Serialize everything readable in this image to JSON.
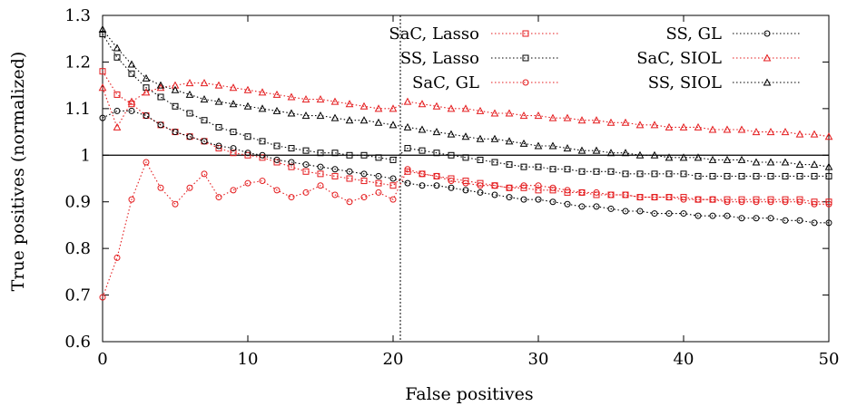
{
  "chart_data": {
    "type": "line",
    "title": "",
    "xlabel": "False positives",
    "ylabel": "True positives (normalized)",
    "xlim": [
      0,
      50
    ],
    "ylim": [
      0.6,
      1.3
    ],
    "xticks": [
      0,
      10,
      20,
      30,
      40,
      50
    ],
    "yticks": [
      0.6,
      0.7,
      0.8,
      0.9,
      1.0,
      1.1,
      1.2,
      1.3
    ],
    "ytick_labels": [
      "0.6",
      "0.7",
      "0.8",
      "0.9",
      "1",
      "1.1",
      "1.2",
      "1.3"
    ],
    "reference_hline": 1.0,
    "reference_vline": 20.5,
    "grid": false,
    "legend_position": "top-right",
    "series": [
      {
        "name": "SaC, Lasso",
        "color": "#e41a1c",
        "marker": "square",
        "x": [
          0,
          1,
          2,
          3,
          4,
          5,
          6,
          7,
          8,
          9,
          10,
          11,
          12,
          13,
          14,
          15,
          16,
          17,
          18,
          19,
          20,
          21,
          22,
          23,
          24,
          25,
          26,
          27,
          28,
          29,
          30,
          31,
          32,
          33,
          34,
          35,
          36,
          37,
          38,
          39,
          40,
          41,
          42,
          43,
          44,
          45,
          46,
          47,
          48,
          49,
          50
        ],
        "values": [
          1.18,
          1.13,
          1.11,
          1.085,
          1.065,
          1.05,
          1.04,
          1.03,
          1.015,
          1.005,
          1.0,
          0.995,
          0.985,
          0.975,
          0.965,
          0.96,
          0.955,
          0.95,
          0.945,
          0.94,
          0.935,
          0.965,
          0.96,
          0.955,
          0.95,
          0.945,
          0.94,
          0.935,
          0.93,
          0.93,
          0.925,
          0.925,
          0.92,
          0.92,
          0.915,
          0.915,
          0.915,
          0.91,
          0.91,
          0.91,
          0.91,
          0.905,
          0.905,
          0.905,
          0.905,
          0.905,
          0.905,
          0.905,
          0.905,
          0.9,
          0.9
        ]
      },
      {
        "name": "SS, Lasso",
        "color": "#000000",
        "marker": "square",
        "x": [
          0,
          1,
          2,
          3,
          4,
          5,
          6,
          7,
          8,
          9,
          10,
          11,
          12,
          13,
          14,
          15,
          16,
          17,
          18,
          19,
          20,
          21,
          22,
          23,
          24,
          25,
          26,
          27,
          28,
          29,
          30,
          31,
          32,
          33,
          34,
          35,
          36,
          37,
          38,
          39,
          40,
          41,
          42,
          43,
          44,
          45,
          46,
          47,
          48,
          49,
          50
        ],
        "values": [
          1.26,
          1.21,
          1.175,
          1.145,
          1.125,
          1.105,
          1.09,
          1.075,
          1.06,
          1.05,
          1.04,
          1.03,
          1.02,
          1.015,
          1.01,
          1.005,
          1.005,
          1.0,
          1.0,
          0.995,
          0.99,
          1.015,
          1.01,
          1.005,
          1.0,
          0.995,
          0.99,
          0.985,
          0.98,
          0.975,
          0.975,
          0.97,
          0.97,
          0.965,
          0.965,
          0.965,
          0.96,
          0.96,
          0.96,
          0.96,
          0.96,
          0.955,
          0.955,
          0.955,
          0.955,
          0.955,
          0.955,
          0.955,
          0.955,
          0.955,
          0.955
        ]
      },
      {
        "name": "SaC, GL",
        "color": "#e41a1c",
        "marker": "circle",
        "x": [
          0,
          1,
          2,
          3,
          4,
          5,
          6,
          7,
          8,
          9,
          10,
          11,
          12,
          13,
          14,
          15,
          16,
          17,
          18,
          19,
          20,
          21,
          22,
          23,
          24,
          25,
          26,
          27,
          28,
          29,
          30,
          31,
          32,
          33,
          34,
          35,
          36,
          37,
          38,
          39,
          40,
          41,
          42,
          43,
          44,
          45,
          46,
          47,
          48,
          49,
          50
        ],
        "values": [
          0.695,
          0.78,
          0.905,
          0.985,
          0.93,
          0.895,
          0.93,
          0.96,
          0.91,
          0.925,
          0.94,
          0.945,
          0.925,
          0.91,
          0.92,
          0.935,
          0.915,
          0.9,
          0.91,
          0.92,
          0.905,
          0.97,
          0.96,
          0.955,
          0.945,
          0.94,
          0.935,
          0.935,
          0.93,
          0.935,
          0.935,
          0.93,
          0.925,
          0.92,
          0.92,
          0.915,
          0.915,
          0.91,
          0.91,
          0.91,
          0.905,
          0.905,
          0.905,
          0.9,
          0.9,
          0.9,
          0.9,
          0.9,
          0.9,
          0.895,
          0.895
        ]
      },
      {
        "name": "SS, GL",
        "color": "#000000",
        "marker": "circle",
        "x": [
          0,
          1,
          2,
          3,
          4,
          5,
          6,
          7,
          8,
          9,
          10,
          11,
          12,
          13,
          14,
          15,
          16,
          17,
          18,
          19,
          20,
          21,
          22,
          23,
          24,
          25,
          26,
          27,
          28,
          29,
          30,
          31,
          32,
          33,
          34,
          35,
          36,
          37,
          38,
          39,
          40,
          41,
          42,
          43,
          44,
          45,
          46,
          47,
          48,
          49,
          50
        ],
        "values": [
          1.08,
          1.095,
          1.095,
          1.085,
          1.065,
          1.05,
          1.04,
          1.03,
          1.02,
          1.015,
          1.005,
          1.0,
          0.99,
          0.985,
          0.98,
          0.975,
          0.97,
          0.965,
          0.96,
          0.955,
          0.95,
          0.94,
          0.935,
          0.935,
          0.93,
          0.925,
          0.92,
          0.915,
          0.91,
          0.905,
          0.905,
          0.9,
          0.895,
          0.89,
          0.89,
          0.885,
          0.88,
          0.88,
          0.875,
          0.875,
          0.875,
          0.87,
          0.87,
          0.87,
          0.865,
          0.865,
          0.865,
          0.86,
          0.86,
          0.855,
          0.855
        ]
      },
      {
        "name": "SaC, SIOL",
        "color": "#e41a1c",
        "marker": "triangle",
        "x": [
          0,
          1,
          2,
          3,
          4,
          5,
          6,
          7,
          8,
          9,
          10,
          11,
          12,
          13,
          14,
          15,
          16,
          17,
          18,
          19,
          20,
          21,
          22,
          23,
          24,
          25,
          26,
          27,
          28,
          29,
          30,
          31,
          32,
          33,
          34,
          35,
          36,
          37,
          38,
          39,
          40,
          41,
          42,
          43,
          44,
          45,
          46,
          47,
          48,
          49,
          50
        ],
        "values": [
          1.145,
          1.06,
          1.115,
          1.135,
          1.145,
          1.15,
          1.155,
          1.155,
          1.15,
          1.145,
          1.14,
          1.135,
          1.13,
          1.125,
          1.12,
          1.12,
          1.115,
          1.11,
          1.105,
          1.1,
          1.1,
          1.115,
          1.11,
          1.105,
          1.1,
          1.1,
          1.095,
          1.09,
          1.09,
          1.085,
          1.085,
          1.08,
          1.08,
          1.075,
          1.075,
          1.07,
          1.07,
          1.065,
          1.065,
          1.06,
          1.06,
          1.06,
          1.055,
          1.055,
          1.055,
          1.05,
          1.05,
          1.05,
          1.045,
          1.045,
          1.04
        ]
      },
      {
        "name": "SS, SIOL",
        "color": "#000000",
        "marker": "triangle",
        "x": [
          0,
          1,
          2,
          3,
          4,
          5,
          6,
          7,
          8,
          9,
          10,
          11,
          12,
          13,
          14,
          15,
          16,
          17,
          18,
          19,
          20,
          21,
          22,
          23,
          24,
          25,
          26,
          27,
          28,
          29,
          30,
          31,
          32,
          33,
          34,
          35,
          36,
          37,
          38,
          39,
          40,
          41,
          42,
          43,
          44,
          45,
          46,
          47,
          48,
          49,
          50
        ],
        "values": [
          1.27,
          1.23,
          1.195,
          1.165,
          1.15,
          1.14,
          1.13,
          1.12,
          1.115,
          1.11,
          1.105,
          1.1,
          1.095,
          1.09,
          1.085,
          1.085,
          1.08,
          1.075,
          1.075,
          1.07,
          1.065,
          1.06,
          1.055,
          1.05,
          1.045,
          1.04,
          1.035,
          1.035,
          1.03,
          1.025,
          1.02,
          1.02,
          1.015,
          1.01,
          1.01,
          1.005,
          1.005,
          1.0,
          1.0,
          0.995,
          0.995,
          0.995,
          0.99,
          0.99,
          0.99,
          0.985,
          0.985,
          0.985,
          0.98,
          0.98,
          0.975
        ]
      }
    ]
  }
}
